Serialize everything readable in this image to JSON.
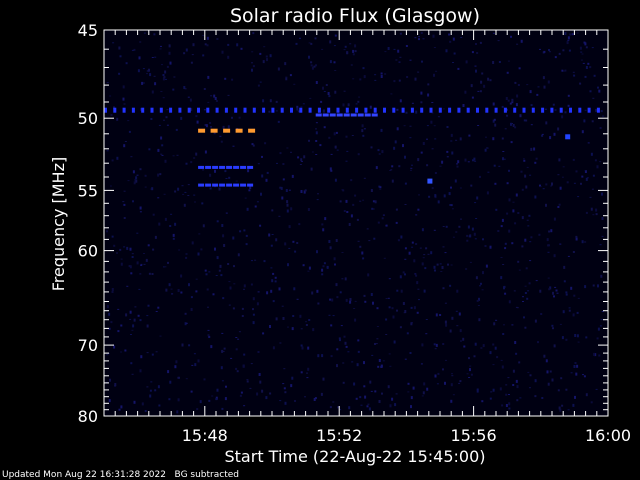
{
  "chart_data": {
    "type": "heatmap",
    "title": "Solar radio Flux (Glasgow)",
    "xlabel": "Start Time (22-Aug-22 15:45:00)",
    "ylabel": "Frequency [MHz]",
    "x_range": [
      "15:45",
      "16:00"
    ],
    "y_range": [
      45,
      80
    ],
    "x_ticks": [
      "15:48",
      "15:52",
      "15:56",
      "16:00"
    ],
    "y_ticks": [
      45,
      50,
      55,
      60,
      70,
      80
    ],
    "background_color": "#000012",
    "features": [
      {
        "kind": "dashed-band",
        "freq": 49.5,
        "t_start": "15:45",
        "t_end": "16:00",
        "color": "#2233ff",
        "intensity": "high"
      },
      {
        "kind": "dashed-band",
        "freq": 49.8,
        "t_start": "15:51.3",
        "t_end": "15:53.3",
        "color": "#3344ff",
        "intensity": "high"
      },
      {
        "kind": "dashed-band",
        "freq": 50.8,
        "t_start": "15:47.8",
        "t_end": "15:49.6",
        "color": "#ff9a30",
        "intensity": "very high"
      },
      {
        "kind": "dashed-band",
        "freq": 53.3,
        "t_start": "15:47.8",
        "t_end": "15:49.6",
        "color": "#2a3cff",
        "intensity": "high"
      },
      {
        "kind": "dashed-band",
        "freq": 54.6,
        "t_start": "15:47.8",
        "t_end": "15:49.6",
        "color": "#2a3cff",
        "intensity": "high"
      },
      {
        "kind": "spot",
        "freq": 54.3,
        "t": "15:54.7",
        "color": "#3355ff"
      },
      {
        "kind": "spot",
        "freq": 51.2,
        "t": "15:58.8",
        "color": "#2244ff"
      }
    ]
  },
  "footer": {
    "updated": "Updated Mon Aug 22 16:31:28 2022",
    "note": "BG subtracted"
  }
}
